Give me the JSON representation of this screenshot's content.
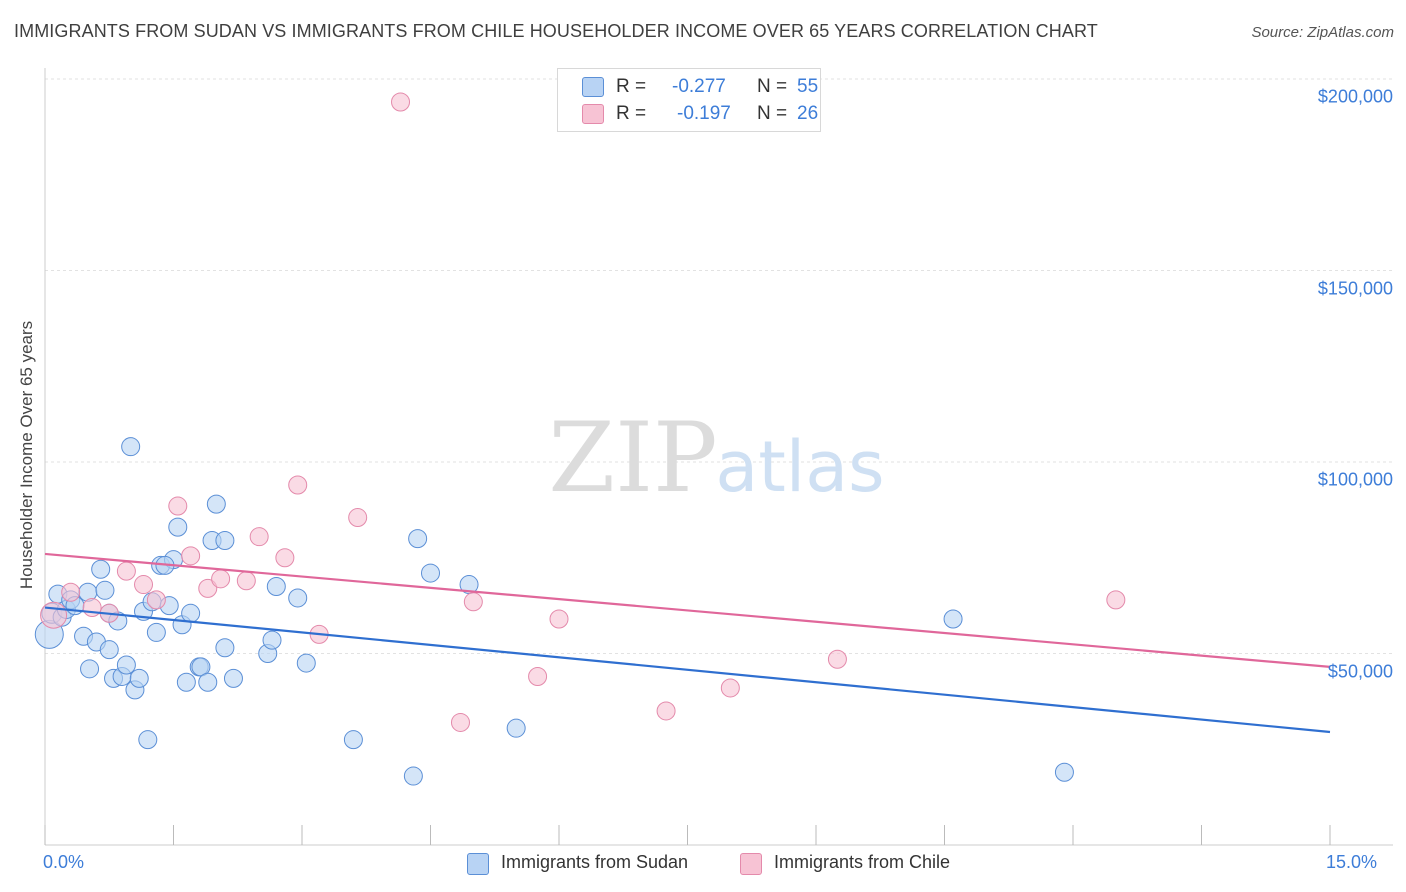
{
  "chart_data": {
    "type": "scatter",
    "title": "IMMIGRANTS FROM SUDAN VS IMMIGRANTS FROM CHILE HOUSEHOLDER INCOME OVER 65 YEARS CORRELATION CHART",
    "source": "Source: ZipAtlas.com",
    "watermark": {
      "bold": "ZIP",
      "light": "atlas"
    },
    "ylabel": "Householder Income Over 65 years",
    "xlim": [
      0,
      15
    ],
    "ylim": [
      0,
      200000
    ],
    "x_tick_labels": {
      "left": "0.0%",
      "right": "15.0%"
    },
    "y_ticks": [
      {
        "value": 200000,
        "label": "$200,000"
      },
      {
        "value": 150000,
        "label": "$150,000"
      },
      {
        "value": 100000,
        "label": "$100,000"
      },
      {
        "value": 50000,
        "label": "$50,000"
      }
    ],
    "legend": [
      {
        "r_label": "R =",
        "r_value": "-0.277",
        "n_label": "N =",
        "n_value": "55"
      },
      {
        "r_label": "R =",
        "r_value": "-0.197",
        "n_label": "N =",
        "n_value": "26"
      }
    ],
    "series": [
      {
        "name": "Immigrants from Sudan",
        "color": "#5b8fd6",
        "fill": "#b8d3f4",
        "line_color": "#2f6fd0",
        "trend": {
          "x": [
            0,
            15
          ],
          "y": [
            62000,
            29500
          ]
        },
        "points": [
          [
            0.05,
            55000,
            14
          ],
          [
            0.08,
            60500,
            10
          ],
          [
            0.15,
            65500,
            9
          ],
          [
            0.2,
            59500,
            9
          ],
          [
            0.25,
            61500,
            9
          ],
          [
            0.3,
            64000,
            9
          ],
          [
            0.35,
            62500,
            9
          ],
          [
            0.45,
            54500,
            9
          ],
          [
            0.5,
            66000,
            9
          ],
          [
            0.52,
            46000,
            9
          ],
          [
            0.6,
            53000,
            9
          ],
          [
            0.65,
            72000,
            9
          ],
          [
            0.7,
            66500,
            9
          ],
          [
            0.75,
            60500,
            9
          ],
          [
            0.75,
            51000,
            9
          ],
          [
            0.8,
            43500,
            9
          ],
          [
            0.85,
            58500,
            9
          ],
          [
            0.9,
            44000,
            9
          ],
          [
            0.95,
            47000,
            9
          ],
          [
            1.0,
            104000,
            9
          ],
          [
            1.05,
            40500,
            9
          ],
          [
            1.1,
            43500,
            9
          ],
          [
            1.15,
            61000,
            9
          ],
          [
            1.2,
            27500,
            9
          ],
          [
            1.25,
            63500,
            9
          ],
          [
            1.3,
            55500,
            9
          ],
          [
            1.35,
            73000,
            9
          ],
          [
            1.45,
            62500,
            9
          ],
          [
            1.5,
            74500,
            9
          ],
          [
            1.55,
            83000,
            9
          ],
          [
            1.6,
            57500,
            9
          ],
          [
            1.65,
            42500,
            9
          ],
          [
            1.7,
            60500,
            9
          ],
          [
            1.8,
            46500,
            9
          ],
          [
            1.82,
            46500,
            9
          ],
          [
            1.9,
            42500,
            9
          ],
          [
            1.95,
            79500,
            9
          ],
          [
            2.0,
            89000,
            9
          ],
          [
            2.1,
            79500,
            9
          ],
          [
            2.1,
            51500,
            9
          ],
          [
            2.2,
            43500,
            9
          ],
          [
            2.6,
            50000,
            9
          ],
          [
            2.65,
            53500,
            9
          ],
          [
            2.7,
            67500,
            9
          ],
          [
            2.95,
            64500,
            9
          ],
          [
            3.05,
            47500,
            9
          ],
          [
            3.6,
            27500,
            9
          ],
          [
            4.3,
            18000,
            9
          ],
          [
            4.35,
            80000,
            9
          ],
          [
            4.5,
            71000,
            9
          ],
          [
            4.95,
            68000,
            9
          ],
          [
            5.5,
            30500,
            9
          ],
          [
            10.6,
            59000,
            9
          ],
          [
            11.9,
            19000,
            9
          ],
          [
            1.4,
            73000,
            9
          ]
        ]
      },
      {
        "name": "Immigrants from Chile",
        "color": "#e48aab",
        "fill": "#f7c3d4",
        "line_color": "#e0679a",
        "trend": {
          "x": [
            0,
            15
          ],
          "y": [
            76000,
            46500
          ]
        },
        "points": [
          [
            0.1,
            60000,
            13
          ],
          [
            0.3,
            66000,
            9
          ],
          [
            0.55,
            62000,
            9
          ],
          [
            0.75,
            60500,
            9
          ],
          [
            0.95,
            71500,
            9
          ],
          [
            1.15,
            68000,
            9
          ],
          [
            1.3,
            64000,
            9
          ],
          [
            1.55,
            88500,
            9
          ],
          [
            1.7,
            75500,
            9
          ],
          [
            1.9,
            67000,
            9
          ],
          [
            2.05,
            69500,
            9
          ],
          [
            2.35,
            69000,
            9
          ],
          [
            2.5,
            80500,
            9
          ],
          [
            2.8,
            75000,
            9
          ],
          [
            2.95,
            94000,
            9
          ],
          [
            3.2,
            55000,
            9
          ],
          [
            3.65,
            85500,
            9
          ],
          [
            4.15,
            194000,
            9
          ],
          [
            4.85,
            32000,
            9
          ],
          [
            5.0,
            63500,
            9
          ],
          [
            5.75,
            44000,
            9
          ],
          [
            6.0,
            59000,
            9
          ],
          [
            7.25,
            35000,
            9
          ],
          [
            8.0,
            41000,
            9
          ],
          [
            9.25,
            48500,
            9
          ],
          [
            12.5,
            64000,
            9
          ]
        ]
      }
    ]
  }
}
